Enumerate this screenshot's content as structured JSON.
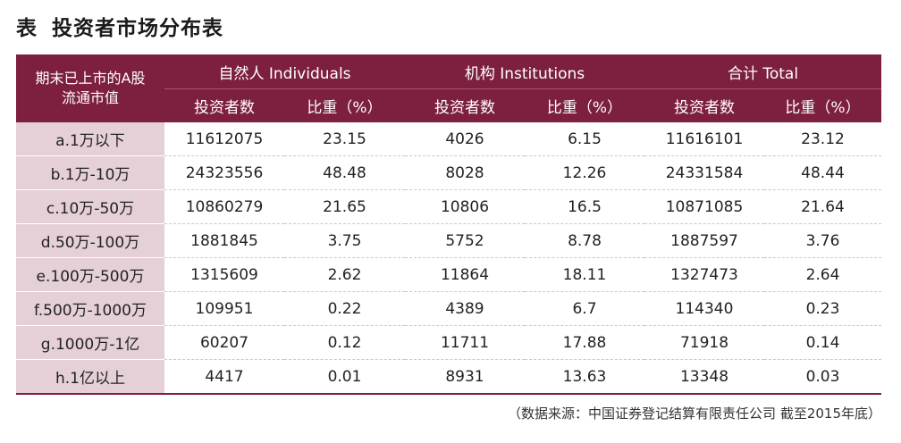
{
  "title": {
    "label": "表",
    "text": "投资者市场分布表"
  },
  "header": {
    "corner_line1": "期末已上市的A股",
    "corner_line2": "流通市值",
    "groups": [
      "自然人 Individuals",
      "机构 Institutions",
      "合计 Total"
    ],
    "subheaders": [
      "投资者数",
      "比重（%）",
      "投资者数",
      "比重（%）",
      "投资者数",
      "比重（%）"
    ]
  },
  "rows": [
    {
      "label": "a.1万以下",
      "values": [
        "11612075",
        "23.15",
        "4026",
        "6.15",
        "11616101",
        "23.12"
      ]
    },
    {
      "label": "b.1万-10万",
      "values": [
        "24323556",
        "48.48",
        "8028",
        "12.26",
        "24331584",
        "48.44"
      ]
    },
    {
      "label": "c.10万-50万",
      "values": [
        "10860279",
        "21.65",
        "10806",
        "16.5",
        "10871085",
        "21.64"
      ]
    },
    {
      "label": "d.50万-100万",
      "values": [
        "1881845",
        "3.75",
        "5752",
        "8.78",
        "1887597",
        "3.76"
      ]
    },
    {
      "label": "e.100万-500万",
      "values": [
        "1315609",
        "2.62",
        "11864",
        "18.11",
        "1327473",
        "2.64"
      ]
    },
    {
      "label": "f.500万-1000万",
      "values": [
        "109951",
        "0.22",
        "4389",
        "6.7",
        "114340",
        "0.23"
      ]
    },
    {
      "label": "g.1000万-1亿",
      "values": [
        "60207",
        "0.12",
        "11711",
        "17.88",
        "71918",
        "0.14"
      ]
    },
    {
      "label": "h.1亿以上",
      "values": [
        "4417",
        "0.01",
        "8931",
        "13.63",
        "13348",
        "0.03"
      ]
    }
  ],
  "source": "（数据来源：中国证券登记结算有限责任公司 截至2015年底）",
  "colors": {
    "header_bg": "#7d1f3f",
    "label_bg": "#e6d0d7"
  }
}
